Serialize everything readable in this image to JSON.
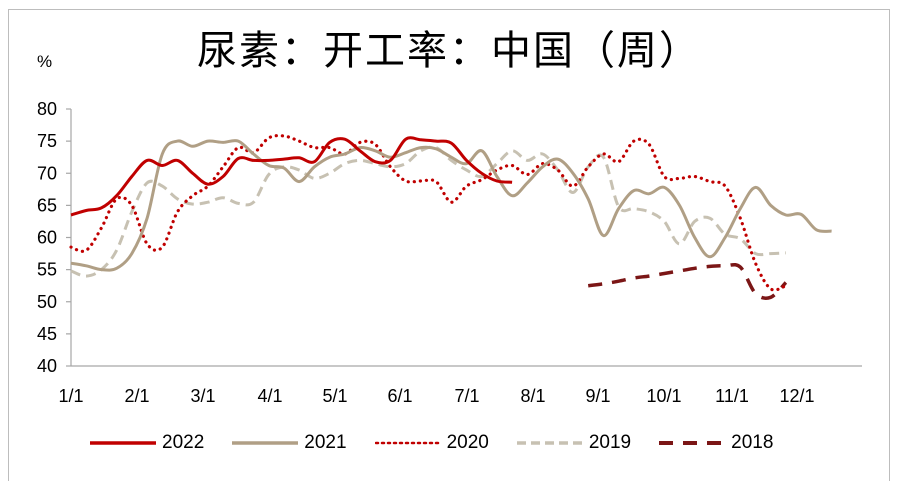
{
  "chart_data": {
    "type": "line",
    "title": "尿素：开工率：中国（周）",
    "ylabel": "%",
    "xlabel": "",
    "ylim": [
      40,
      80
    ],
    "yticks": [
      40,
      45,
      50,
      55,
      60,
      65,
      70,
      75,
      80
    ],
    "x_tick_labels": [
      "1/1",
      "2/1",
      "3/1",
      "4/1",
      "5/1",
      "6/1",
      "7/1",
      "8/1",
      "9/1",
      "10/1",
      "11/1",
      "12/1"
    ],
    "x_unit": "week",
    "legend_position": "bottom",
    "grid": false,
    "series": [
      {
        "name": "2022",
        "color": "#c00000",
        "style": "solid",
        "width": 3,
        "start_week": 0,
        "values": [
          63.5,
          64.2,
          64.6,
          66.5,
          69.5,
          72.0,
          71.2,
          72.0,
          70.0,
          68.3,
          69.5,
          72.3,
          72.0,
          72.0,
          72.2,
          72.4,
          71.8,
          74.8,
          75.3,
          73.5,
          71.8,
          72.0,
          75.3,
          75.2,
          75.0,
          74.7,
          72.0,
          70.0,
          68.8,
          68.6
        ]
      },
      {
        "name": "2021",
        "color": "#b09f85",
        "style": "solid",
        "width": 3,
        "start_week": 0,
        "values": [
          56.0,
          55.6,
          55.0,
          55.2,
          57.5,
          63.0,
          73.0,
          75.0,
          74.2,
          75.0,
          74.8,
          75.0,
          73.0,
          71.2,
          70.8,
          68.7,
          71.0,
          72.5,
          73.0,
          74.0,
          73.5,
          72.5,
          73.2,
          74.0,
          73.8,
          72.5,
          71.5,
          73.5,
          69.5,
          66.5,
          68.5,
          71.0,
          72.2,
          70.0,
          66.0,
          60.3,
          64.5,
          67.3,
          66.8,
          67.8,
          65.0,
          60.0,
          57.0,
          60.0,
          64.5,
          67.8,
          65.0,
          63.5,
          63.6,
          61.2,
          61.0
        ]
      },
      {
        "name": "2020",
        "color": "#c00000",
        "style": "dotted",
        "width": 2.5,
        "start_week": 0,
        "values": [
          58.5,
          58.0,
          61.5,
          66.0,
          65.0,
          59.0,
          58.5,
          64.0,
          66.5,
          68.0,
          71.0,
          74.0,
          73.2,
          75.5,
          75.8,
          75.0,
          74.0,
          74.0,
          73.0,
          74.8,
          74.5,
          71.0,
          68.8,
          68.8,
          68.7,
          65.5,
          68.0,
          69.0,
          70.5,
          71.2,
          69.8,
          71.5,
          70.5,
          68.0,
          71.0,
          73.0,
          71.8,
          75.0,
          74.5,
          69.5,
          69.2,
          69.5,
          68.7,
          68.0,
          63.0,
          56.0,
          52.0,
          52.5
        ]
      },
      {
        "name": "2019",
        "color": "#c7c1b2",
        "style": "dashed",
        "width": 3,
        "start_week": 0,
        "values": [
          54.8,
          54.0,
          55.0,
          58.0,
          64.0,
          68.5,
          68.0,
          66.0,
          65.2,
          65.5,
          66.2,
          65.3,
          65.5,
          69.8,
          71.0,
          70.5,
          69.2,
          70.0,
          71.5,
          72.0,
          71.5,
          71.0,
          71.5,
          73.5,
          74.0,
          72.0,
          70.5,
          69.5,
          71.5,
          73.5,
          72.0,
          73.0,
          70.5,
          67.0,
          71.0,
          72.5,
          64.8,
          64.5,
          64.0,
          62.5,
          59.0,
          62.5,
          63.0,
          60.5,
          59.8,
          57.5,
          57.5,
          57.6
        ]
      },
      {
        "name": "2018",
        "color": "#7b1616",
        "style": "dashed",
        "width": 3.5,
        "start_week": 34,
        "values": [
          52.5,
          52.8,
          53.2,
          53.7,
          54.0,
          54.4,
          54.8,
          55.2,
          55.5,
          55.6,
          55.4,
          51.3,
          50.7,
          53.0
        ]
      }
    ]
  },
  "legend": {
    "items": [
      {
        "label": "2022"
      },
      {
        "label": "2021"
      },
      {
        "label": "2020"
      },
      {
        "label": "2019"
      },
      {
        "label": "2018"
      }
    ]
  }
}
